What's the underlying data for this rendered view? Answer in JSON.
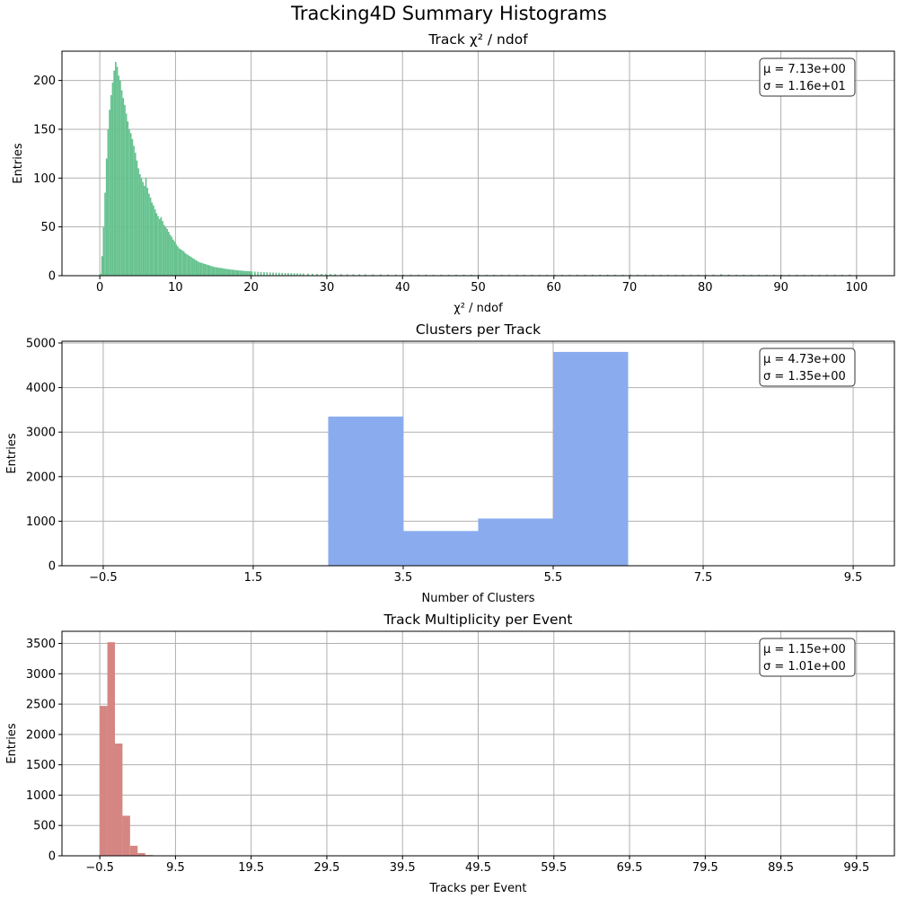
{
  "suptitle": "Tracking4D Summary Histograms",
  "chart_data": [
    {
      "type": "histogram",
      "title": "Track χ² / ndof",
      "xlabel": "χ² / ndof",
      "ylabel": "Entries",
      "color": "#66c28f",
      "xlim": [
        -5,
        105
      ],
      "ylim": [
        0,
        230
      ],
      "xticks": [
        0,
        10,
        20,
        30,
        40,
        50,
        60,
        70,
        80,
        90,
        100
      ],
      "xtick_labels": [
        "0",
        "10",
        "20",
        "30",
        "40",
        "50",
        "60",
        "70",
        "80",
        "90",
        "100"
      ],
      "yticks": [
        0,
        50,
        100,
        150,
        200
      ],
      "ytick_labels": [
        "0",
        "50",
        "100",
        "150",
        "200"
      ],
      "grid": true,
      "stats": {
        "mu": "μ = 7.13e+00",
        "sigma": "σ = 1.16e+01"
      },
      "bin_width": 0.2,
      "bins": [
        {
          "x": 0.0,
          "y": 2
        },
        {
          "x": 0.2,
          "y": 20
        },
        {
          "x": 0.4,
          "y": 50
        },
        {
          "x": 0.6,
          "y": 85
        },
        {
          "x": 0.8,
          "y": 120
        },
        {
          "x": 1.0,
          "y": 150
        },
        {
          "x": 1.2,
          "y": 170
        },
        {
          "x": 1.4,
          "y": 185
        },
        {
          "x": 1.6,
          "y": 198
        },
        {
          "x": 1.8,
          "y": 210
        },
        {
          "x": 2.0,
          "y": 219
        },
        {
          "x": 2.2,
          "y": 214
        },
        {
          "x": 2.4,
          "y": 205
        },
        {
          "x": 2.6,
          "y": 200
        },
        {
          "x": 2.8,
          "y": 190
        },
        {
          "x": 3.0,
          "y": 182
        },
        {
          "x": 3.2,
          "y": 175
        },
        {
          "x": 3.4,
          "y": 166
        },
        {
          "x": 3.6,
          "y": 158
        },
        {
          "x": 3.8,
          "y": 150
        },
        {
          "x": 4.0,
          "y": 146
        },
        {
          "x": 4.2,
          "y": 140
        },
        {
          "x": 4.4,
          "y": 133
        },
        {
          "x": 4.6,
          "y": 126
        },
        {
          "x": 4.8,
          "y": 118
        },
        {
          "x": 5.0,
          "y": 110
        },
        {
          "x": 5.2,
          "y": 104
        },
        {
          "x": 5.4,
          "y": 100
        },
        {
          "x": 5.6,
          "y": 96
        },
        {
          "x": 5.8,
          "y": 92
        },
        {
          "x": 6.0,
          "y": 100
        },
        {
          "x": 6.2,
          "y": 90
        },
        {
          "x": 6.4,
          "y": 84
        },
        {
          "x": 6.6,
          "y": 80
        },
        {
          "x": 6.8,
          "y": 75
        },
        {
          "x": 7.0,
          "y": 72
        },
        {
          "x": 7.2,
          "y": 68
        },
        {
          "x": 7.4,
          "y": 64
        },
        {
          "x": 7.6,
          "y": 61
        },
        {
          "x": 7.8,
          "y": 58
        },
        {
          "x": 8.0,
          "y": 60
        },
        {
          "x": 8.2,
          "y": 56
        },
        {
          "x": 8.4,
          "y": 52
        },
        {
          "x": 8.6,
          "y": 50
        },
        {
          "x": 8.8,
          "y": 48
        },
        {
          "x": 9.0,
          "y": 45
        },
        {
          "x": 9.2,
          "y": 42
        },
        {
          "x": 9.4,
          "y": 40
        },
        {
          "x": 9.6,
          "y": 37
        },
        {
          "x": 9.8,
          "y": 35
        },
        {
          "x": 10.0,
          "y": 32
        },
        {
          "x": 10.2,
          "y": 30
        },
        {
          "x": 10.4,
          "y": 28
        },
        {
          "x": 10.6,
          "y": 27
        },
        {
          "x": 10.8,
          "y": 26
        },
        {
          "x": 11.0,
          "y": 25
        },
        {
          "x": 11.2,
          "y": 23
        },
        {
          "x": 11.4,
          "y": 22
        },
        {
          "x": 11.6,
          "y": 21
        },
        {
          "x": 11.8,
          "y": 20
        },
        {
          "x": 12.0,
          "y": 19
        },
        {
          "x": 12.2,
          "y": 18
        },
        {
          "x": 12.4,
          "y": 17
        },
        {
          "x": 12.6,
          "y": 16
        },
        {
          "x": 12.8,
          "y": 15
        },
        {
          "x": 13.0,
          "y": 14
        },
        {
          "x": 13.2,
          "y": 13.5
        },
        {
          "x": 13.4,
          "y": 13
        },
        {
          "x": 13.6,
          "y": 12.5
        },
        {
          "x": 13.8,
          "y": 12
        },
        {
          "x": 14.0,
          "y": 11.5
        },
        {
          "x": 14.2,
          "y": 11
        },
        {
          "x": 14.4,
          "y": 10.5
        },
        {
          "x": 14.6,
          "y": 10
        },
        {
          "x": 14.8,
          "y": 9.5
        },
        {
          "x": 15.0,
          "y": 9
        },
        {
          "x": 15.2,
          "y": 8.8
        },
        {
          "x": 15.4,
          "y": 8.5
        },
        {
          "x": 15.6,
          "y": 8.2
        },
        {
          "x": 15.8,
          "y": 8
        },
        {
          "x": 16.0,
          "y": 7.8
        },
        {
          "x": 16.2,
          "y": 7.5
        },
        {
          "x": 16.4,
          "y": 7.2
        },
        {
          "x": 16.6,
          "y": 7
        },
        {
          "x": 16.8,
          "y": 6.8
        },
        {
          "x": 17.0,
          "y": 6.5
        },
        {
          "x": 17.2,
          "y": 6.3
        },
        {
          "x": 17.4,
          "y": 6.1
        },
        {
          "x": 17.6,
          "y": 6
        },
        {
          "x": 17.8,
          "y": 5.8
        },
        {
          "x": 18.0,
          "y": 5.6
        },
        {
          "x": 18.2,
          "y": 5.4
        },
        {
          "x": 18.4,
          "y": 5.3
        },
        {
          "x": 18.6,
          "y": 5.2
        },
        {
          "x": 18.8,
          "y": 5
        },
        {
          "x": 19.0,
          "y": 4.9
        },
        {
          "x": 19.2,
          "y": 4.8
        },
        {
          "x": 19.4,
          "y": 4.7
        },
        {
          "x": 19.6,
          "y": 4.6
        },
        {
          "x": 19.8,
          "y": 4.5
        },
        {
          "x": 20.0,
          "y": 4.4
        },
        {
          "x": 20.4,
          "y": 4.2
        },
        {
          "x": 20.8,
          "y": 4
        },
        {
          "x": 21.2,
          "y": 3.8
        },
        {
          "x": 21.6,
          "y": 3.6
        },
        {
          "x": 22.0,
          "y": 3.5
        },
        {
          "x": 22.4,
          "y": 3.3
        },
        {
          "x": 22.8,
          "y": 3.2
        },
        {
          "x": 23.2,
          "y": 3.1
        },
        {
          "x": 23.6,
          "y": 3
        },
        {
          "x": 24.0,
          "y": 2.9
        },
        {
          "x": 24.4,
          "y": 2.8
        },
        {
          "x": 24.8,
          "y": 2.7
        },
        {
          "x": 25.2,
          "y": 2.6
        },
        {
          "x": 25.6,
          "y": 2.5
        },
        {
          "x": 26.0,
          "y": 2.4
        },
        {
          "x": 26.4,
          "y": 2.3
        },
        {
          "x": 26.8,
          "y": 2.2
        },
        {
          "x": 27.4,
          "y": 2.1
        },
        {
          "x": 28.0,
          "y": 2
        },
        {
          "x": 28.6,
          "y": 1.9
        },
        {
          "x": 29.2,
          "y": 1.8
        },
        {
          "x": 29.8,
          "y": 1.8
        },
        {
          "x": 30.4,
          "y": 1.7
        },
        {
          "x": 31.0,
          "y": 1.6
        },
        {
          "x": 31.8,
          "y": 1.6
        },
        {
          "x": 32.6,
          "y": 1.5
        },
        {
          "x": 33.4,
          "y": 1.5
        },
        {
          "x": 34.2,
          "y": 1.4
        },
        {
          "x": 35.0,
          "y": 1.4
        },
        {
          "x": 36.0,
          "y": 1.3
        },
        {
          "x": 37.0,
          "y": 1.3
        },
        {
          "x": 38.0,
          "y": 1.2
        },
        {
          "x": 39.0,
          "y": 1.2
        },
        {
          "x": 40.0,
          "y": 1.2
        },
        {
          "x": 41.0,
          "y": 1.1
        },
        {
          "x": 42.0,
          "y": 1.1
        },
        {
          "x": 43.0,
          "y": 1.1
        },
        {
          "x": 44.0,
          "y": 1
        },
        {
          "x": 45.0,
          "y": 1
        },
        {
          "x": 46.0,
          "y": 1
        },
        {
          "x": 47.0,
          "y": 1
        },
        {
          "x": 48.0,
          "y": 1
        },
        {
          "x": 49.0,
          "y": 1
        },
        {
          "x": 50.0,
          "y": 1
        },
        {
          "x": 51.0,
          "y": 1
        },
        {
          "x": 52.0,
          "y": 1
        },
        {
          "x": 53.0,
          "y": 1
        },
        {
          "x": 54.0,
          "y": 1
        },
        {
          "x": 55.0,
          "y": 1
        },
        {
          "x": 56.0,
          "y": 1
        },
        {
          "x": 57.0,
          "y": 1
        },
        {
          "x": 58.0,
          "y": 1
        },
        {
          "x": 59.0,
          "y": 1
        },
        {
          "x": 60.0,
          "y": 1
        },
        {
          "x": 61.0,
          "y": 1
        },
        {
          "x": 62.0,
          "y": 1
        },
        {
          "x": 63.0,
          "y": 1
        },
        {
          "x": 64.0,
          "y": 1
        },
        {
          "x": 65.0,
          "y": 1
        },
        {
          "x": 66.0,
          "y": 1
        },
        {
          "x": 67.0,
          "y": 1
        },
        {
          "x": 68.0,
          "y": 1
        },
        {
          "x": 69.0,
          "y": 1
        },
        {
          "x": 70.0,
          "y": 1
        },
        {
          "x": 71.0,
          "y": 1
        },
        {
          "x": 72.0,
          "y": 1
        },
        {
          "x": 73.0,
          "y": 1
        },
        {
          "x": 74.0,
          "y": 1
        },
        {
          "x": 75.0,
          "y": 1
        },
        {
          "x": 76.0,
          "y": 1
        },
        {
          "x": 77.0,
          "y": 1
        },
        {
          "x": 78.0,
          "y": 1
        },
        {
          "x": 79.0,
          "y": 1
        },
        {
          "x": 80.0,
          "y": 1
        },
        {
          "x": 81.0,
          "y": 1.2
        },
        {
          "x": 82.0,
          "y": 1.5
        },
        {
          "x": 83.0,
          "y": 1.2
        },
        {
          "x": 84.0,
          "y": 1
        },
        {
          "x": 85.0,
          "y": 1
        },
        {
          "x": 86.0,
          "y": 1
        },
        {
          "x": 87.0,
          "y": 1
        },
        {
          "x": 88.0,
          "y": 1
        },
        {
          "x": 89.0,
          "y": 1
        },
        {
          "x": 90.0,
          "y": 1
        },
        {
          "x": 91.0,
          "y": 1
        },
        {
          "x": 92.0,
          "y": 1
        },
        {
          "x": 93.0,
          "y": 1
        },
        {
          "x": 94.0,
          "y": 1
        },
        {
          "x": 95.0,
          "y": 1
        },
        {
          "x": 96.0,
          "y": 1
        },
        {
          "x": 97.0,
          "y": 1
        },
        {
          "x": 98.0,
          "y": 1
        },
        {
          "x": 99.0,
          "y": 1.2
        }
      ]
    },
    {
      "type": "histogram",
      "title": "Clusters per Track",
      "xlabel": "Number of Clusters",
      "ylabel": "Entries",
      "color": "#8aacee",
      "xlim": [
        -1.05,
        10.05
      ],
      "ylim": [
        0,
        5040
      ],
      "xticks": [
        -0.5,
        1.5,
        3.5,
        5.5,
        7.5,
        9.5
      ],
      "xtick_labels": [
        "−0.5",
        "1.5",
        "3.5",
        "5.5",
        "7.5",
        "9.5"
      ],
      "yticks": [
        0,
        1000,
        2000,
        3000,
        4000,
        5000
      ],
      "ytick_labels": [
        "0",
        "1000",
        "2000",
        "3000",
        "4000",
        "5000"
      ],
      "grid": true,
      "stats": {
        "mu": "μ = 4.73e+00",
        "sigma": "σ = 1.35e+00"
      },
      "bin_width": 1,
      "bins": [
        {
          "x": 2.5,
          "y": 3350
        },
        {
          "x": 3.5,
          "y": 780
        },
        {
          "x": 4.5,
          "y": 1060
        },
        {
          "x": 5.5,
          "y": 4800
        }
      ]
    },
    {
      "type": "histogram",
      "title": "Track Multiplicity per Event",
      "xlabel": "Tracks per Event",
      "ylabel": "Entries",
      "color": "#d58683",
      "xlim": [
        -5.5,
        104.5
      ],
      "ylim": [
        0,
        3700
      ],
      "xticks": [
        -0.5,
        9.5,
        19.5,
        29.5,
        39.5,
        49.5,
        59.5,
        69.5,
        79.5,
        89.5,
        99.5
      ],
      "xtick_labels": [
        "−0.5",
        "9.5",
        "19.5",
        "29.5",
        "39.5",
        "49.5",
        "59.5",
        "69.5",
        "79.5",
        "89.5",
        "99.5"
      ],
      "yticks": [
        0,
        500,
        1000,
        1500,
        2000,
        2500,
        3000,
        3500
      ],
      "ytick_labels": [
        "0",
        "500",
        "1000",
        "1500",
        "2000",
        "2500",
        "3000",
        "3500"
      ],
      "grid": true,
      "stats": {
        "mu": "μ = 1.15e+00",
        "sigma": "σ = 1.01e+00"
      },
      "bin_width": 1,
      "bins": [
        {
          "x": -0.5,
          "y": 2470
        },
        {
          "x": 0.5,
          "y": 3520
        },
        {
          "x": 1.5,
          "y": 1850
        },
        {
          "x": 2.5,
          "y": 660
        },
        {
          "x": 3.5,
          "y": 165
        },
        {
          "x": 4.5,
          "y": 45
        },
        {
          "x": 5.5,
          "y": 12
        },
        {
          "x": 6.5,
          "y": 3
        }
      ]
    }
  ]
}
